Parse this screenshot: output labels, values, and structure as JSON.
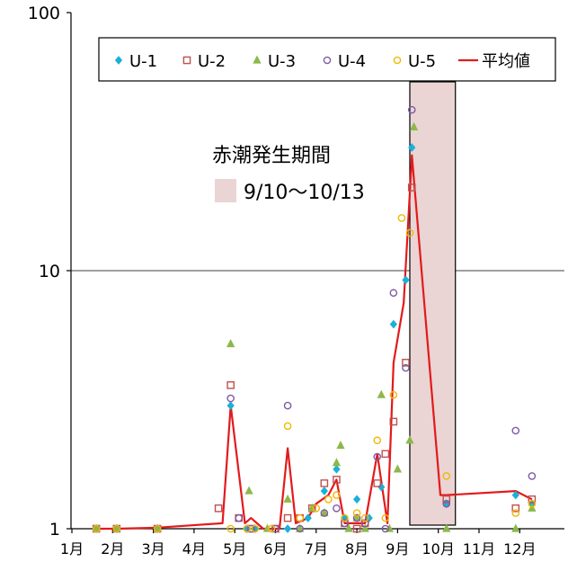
{
  "chart_data": {
    "type": "scatter",
    "y_scale": "log",
    "ylim": [
      1,
      100
    ],
    "y_ticks": [
      "1",
      "10",
      "100"
    ],
    "x_ticks": [
      "1月",
      "2月",
      "3月",
      "4月",
      "5月",
      "6月",
      "7月",
      "8月",
      "9月",
      "10月",
      "11月",
      "12月"
    ],
    "xlim": [
      1,
      13
    ],
    "grid": "y-major",
    "legend": {
      "position": "top",
      "entries": [
        {
          "name": "U-1",
          "marker": "diamond",
          "color": "#1BB0D8"
        },
        {
          "name": "U-2",
          "marker": "square",
          "color": "#C0504D"
        },
        {
          "name": "U-3",
          "marker": "triangle",
          "color": "#8CB84B"
        },
        {
          "name": "U-4",
          "marker": "circle",
          "color": "#7E5BA6"
        },
        {
          "name": "U-5",
          "marker": "circle",
          "color": "#F2B705"
        },
        {
          "name": "平均値",
          "marker": "line",
          "color": "#E31A1C"
        }
      ]
    },
    "annotation": {
      "title": "赤潮発生期間",
      "range_label": "9/10～10/13",
      "x_start": 9.3,
      "x_end": 10.42,
      "fill": "#EAD4D4"
    },
    "series": [
      {
        "name": "U-1",
        "marker": "diamond",
        "color": "#1BB0D8",
        "points": [
          [
            1.6,
            1
          ],
          [
            2.1,
            1
          ],
          [
            3.1,
            1
          ],
          [
            4.9,
            3
          ],
          [
            5.3,
            1
          ],
          [
            5.5,
            1
          ],
          [
            6.3,
            1
          ],
          [
            6.8,
            1.1
          ],
          [
            7.2,
            1.4
          ],
          [
            7.5,
            1.7
          ],
          [
            7.7,
            1.1
          ],
          [
            8.0,
            1.3
          ],
          [
            8.3,
            1.1
          ],
          [
            8.6,
            1.45
          ],
          [
            8.9,
            6.2
          ],
          [
            9.2,
            9.2
          ],
          [
            9.35,
            30
          ],
          [
            10.2,
            1.25
          ],
          [
            11.9,
            1.35
          ],
          [
            12.3,
            1.25
          ]
        ]
      },
      {
        "name": "U-2",
        "marker": "square",
        "color": "#C0504D",
        "points": [
          [
            1.6,
            1
          ],
          [
            2.1,
            1
          ],
          [
            3.1,
            1
          ],
          [
            4.6,
            1.2
          ],
          [
            4.9,
            3.6
          ],
          [
            5.1,
            1.1
          ],
          [
            5.4,
            1
          ],
          [
            6.0,
            1
          ],
          [
            6.3,
            1.1
          ],
          [
            6.6,
            1.1
          ],
          [
            6.9,
            1.2
          ],
          [
            7.2,
            1.5
          ],
          [
            7.5,
            1.55
          ],
          [
            7.7,
            1.05
          ],
          [
            8.0,
            1
          ],
          [
            8.2,
            1.05
          ],
          [
            8.5,
            1.5
          ],
          [
            8.7,
            1.95
          ],
          [
            8.9,
            2.6
          ],
          [
            9.2,
            4.4
          ],
          [
            9.35,
            21
          ],
          [
            10.2,
            1.3
          ],
          [
            11.9,
            1.2
          ],
          [
            12.3,
            1.3
          ]
        ]
      },
      {
        "name": "U-3",
        "marker": "triangle",
        "color": "#8CB84B",
        "points": [
          [
            1.6,
            1
          ],
          [
            2.1,
            1
          ],
          [
            3.1,
            1
          ],
          [
            4.9,
            5.2
          ],
          [
            5.35,
            1.4
          ],
          [
            5.8,
            1
          ],
          [
            6.3,
            1.3
          ],
          [
            6.6,
            1
          ],
          [
            6.9,
            1.2
          ],
          [
            7.2,
            1.15
          ],
          [
            7.5,
            1.8
          ],
          [
            7.6,
            2.1
          ],
          [
            7.8,
            1
          ],
          [
            8.0,
            1.1
          ],
          [
            8.2,
            1
          ],
          [
            8.6,
            3.3
          ],
          [
            8.8,
            1
          ],
          [
            9.0,
            1.7
          ],
          [
            9.3,
            2.2
          ],
          [
            9.4,
            36
          ],
          [
            10.2,
            1
          ],
          [
            11.9,
            1
          ],
          [
            12.3,
            1.2
          ]
        ]
      },
      {
        "name": "U-4",
        "marker": "circle",
        "color": "#7E5BA6",
        "points": [
          [
            1.6,
            1
          ],
          [
            2.1,
            1
          ],
          [
            3.1,
            1
          ],
          [
            4.9,
            3.2
          ],
          [
            5.1,
            1.1
          ],
          [
            5.4,
            1
          ],
          [
            6.0,
            1
          ],
          [
            6.3,
            3
          ],
          [
            6.6,
            1
          ],
          [
            7.2,
            1.15
          ],
          [
            7.5,
            1.2
          ],
          [
            7.7,
            1.05
          ],
          [
            8.0,
            1.1
          ],
          [
            8.2,
            1.05
          ],
          [
            8.5,
            1.9
          ],
          [
            8.7,
            1
          ],
          [
            8.9,
            8.2
          ],
          [
            9.2,
            4.2
          ],
          [
            9.35,
            42
          ],
          [
            10.2,
            1.25
          ],
          [
            11.9,
            2.4
          ],
          [
            12.3,
            1.6
          ]
        ]
      },
      {
        "name": "U-5",
        "marker": "circle",
        "color": "#F2B705",
        "points": [
          [
            1.6,
            1
          ],
          [
            2.1,
            1
          ],
          [
            3.1,
            1
          ],
          [
            4.9,
            1
          ],
          [
            5.3,
            1
          ],
          [
            5.5,
            1
          ],
          [
            5.9,
            1
          ],
          [
            6.3,
            2.5
          ],
          [
            6.6,
            1.1
          ],
          [
            7.0,
            1.2
          ],
          [
            7.3,
            1.3
          ],
          [
            7.5,
            1.35
          ],
          [
            7.7,
            1.1
          ],
          [
            8.0,
            1.15
          ],
          [
            8.2,
            1.1
          ],
          [
            8.5,
            2.2
          ],
          [
            8.7,
            1.1
          ],
          [
            8.9,
            3.3
          ],
          [
            9.1,
            16
          ],
          [
            9.3,
            14
          ],
          [
            10.2,
            1.6
          ],
          [
            11.9,
            1.15
          ],
          [
            12.3,
            1.25
          ]
        ]
      },
      {
        "name": "平均値",
        "marker": "line",
        "color": "#E31A1C",
        "points": [
          [
            1.6,
            1
          ],
          [
            2.1,
            1
          ],
          [
            3.1,
            1.01
          ],
          [
            4.7,
            1.05
          ],
          [
            4.9,
            3
          ],
          [
            5.25,
            1.05
          ],
          [
            5.4,
            1.1
          ],
          [
            5.7,
            1
          ],
          [
            6.1,
            1
          ],
          [
            6.3,
            2.05
          ],
          [
            6.5,
            1.05
          ],
          [
            6.8,
            1.1
          ],
          [
            7.0,
            1.25
          ],
          [
            7.3,
            1.35
          ],
          [
            7.5,
            1.55
          ],
          [
            7.7,
            1.05
          ],
          [
            7.95,
            1.05
          ],
          [
            8.2,
            1.05
          ],
          [
            8.5,
            1.95
          ],
          [
            8.75,
            1.05
          ],
          [
            8.9,
            4.4
          ],
          [
            9.15,
            7.5
          ],
          [
            9.35,
            28
          ],
          [
            10.05,
            1.35
          ],
          [
            10.2,
            1.35
          ],
          [
            11.9,
            1.4
          ],
          [
            12.3,
            1.3
          ]
        ]
      }
    ]
  }
}
